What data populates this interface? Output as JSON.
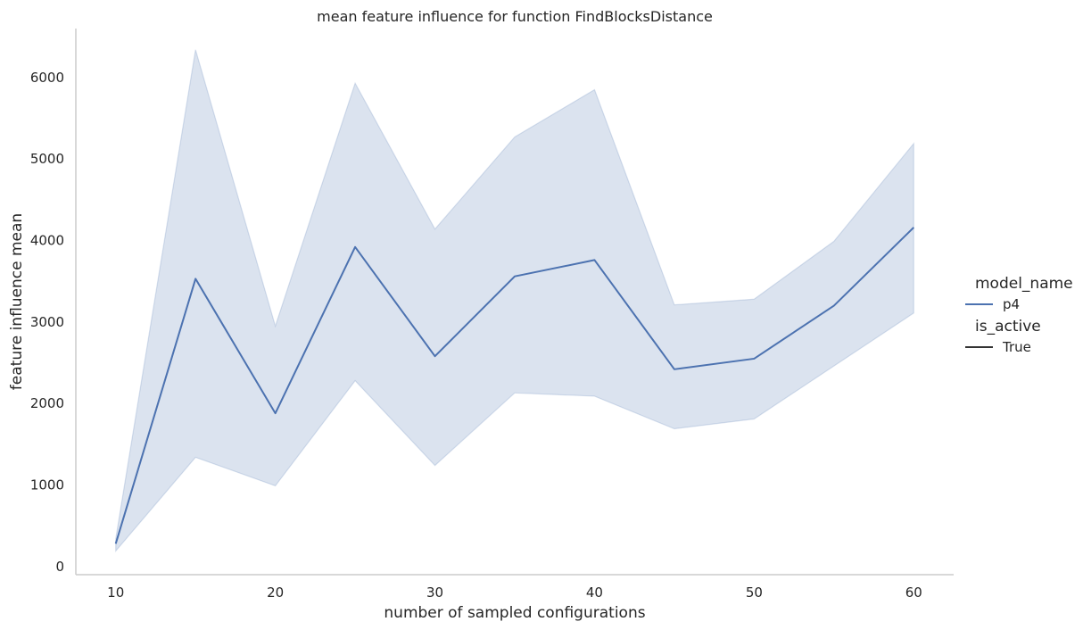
{
  "chart_data": {
    "type": "line",
    "title": "mean feature influence for function FindBlocksDistance",
    "xlabel": "number of sampled configurations",
    "ylabel": "feature influence mean",
    "xlim": [
      7.5,
      62.5
    ],
    "ylim": [
      -100,
      6600
    ],
    "x_ticks": [
      10,
      20,
      30,
      40,
      50,
      60
    ],
    "y_ticks": [
      0,
      1000,
      2000,
      3000,
      4000,
      5000,
      6000
    ],
    "grid": false,
    "legend": {
      "placement": "right",
      "groups": [
        {
          "title": "model_name",
          "entries": [
            {
              "label": "p4",
              "style": "line-color"
            }
          ]
        },
        {
          "title": "is_active",
          "entries": [
            {
              "label": "True",
              "style": "line-dark"
            }
          ]
        }
      ]
    },
    "series": [
      {
        "name": "p4",
        "color": "#4c72b0",
        "band_color": "#4c72b0",
        "x": [
          10,
          15,
          20,
          25,
          30,
          35,
          40,
          45,
          50,
          55,
          60
        ],
        "values": [
          280,
          3530,
          1880,
          3920,
          2580,
          3560,
          3760,
          2420,
          2550,
          3200,
          4160
        ],
        "ci_low": [
          190,
          1340,
          990,
          2280,
          1240,
          2130,
          2090,
          1690,
          1810,
          2460,
          3110
        ],
        "ci_high": [
          340,
          6340,
          2950,
          5930,
          4140,
          5270,
          5850,
          3210,
          3280,
          3990,
          5190
        ]
      }
    ]
  }
}
